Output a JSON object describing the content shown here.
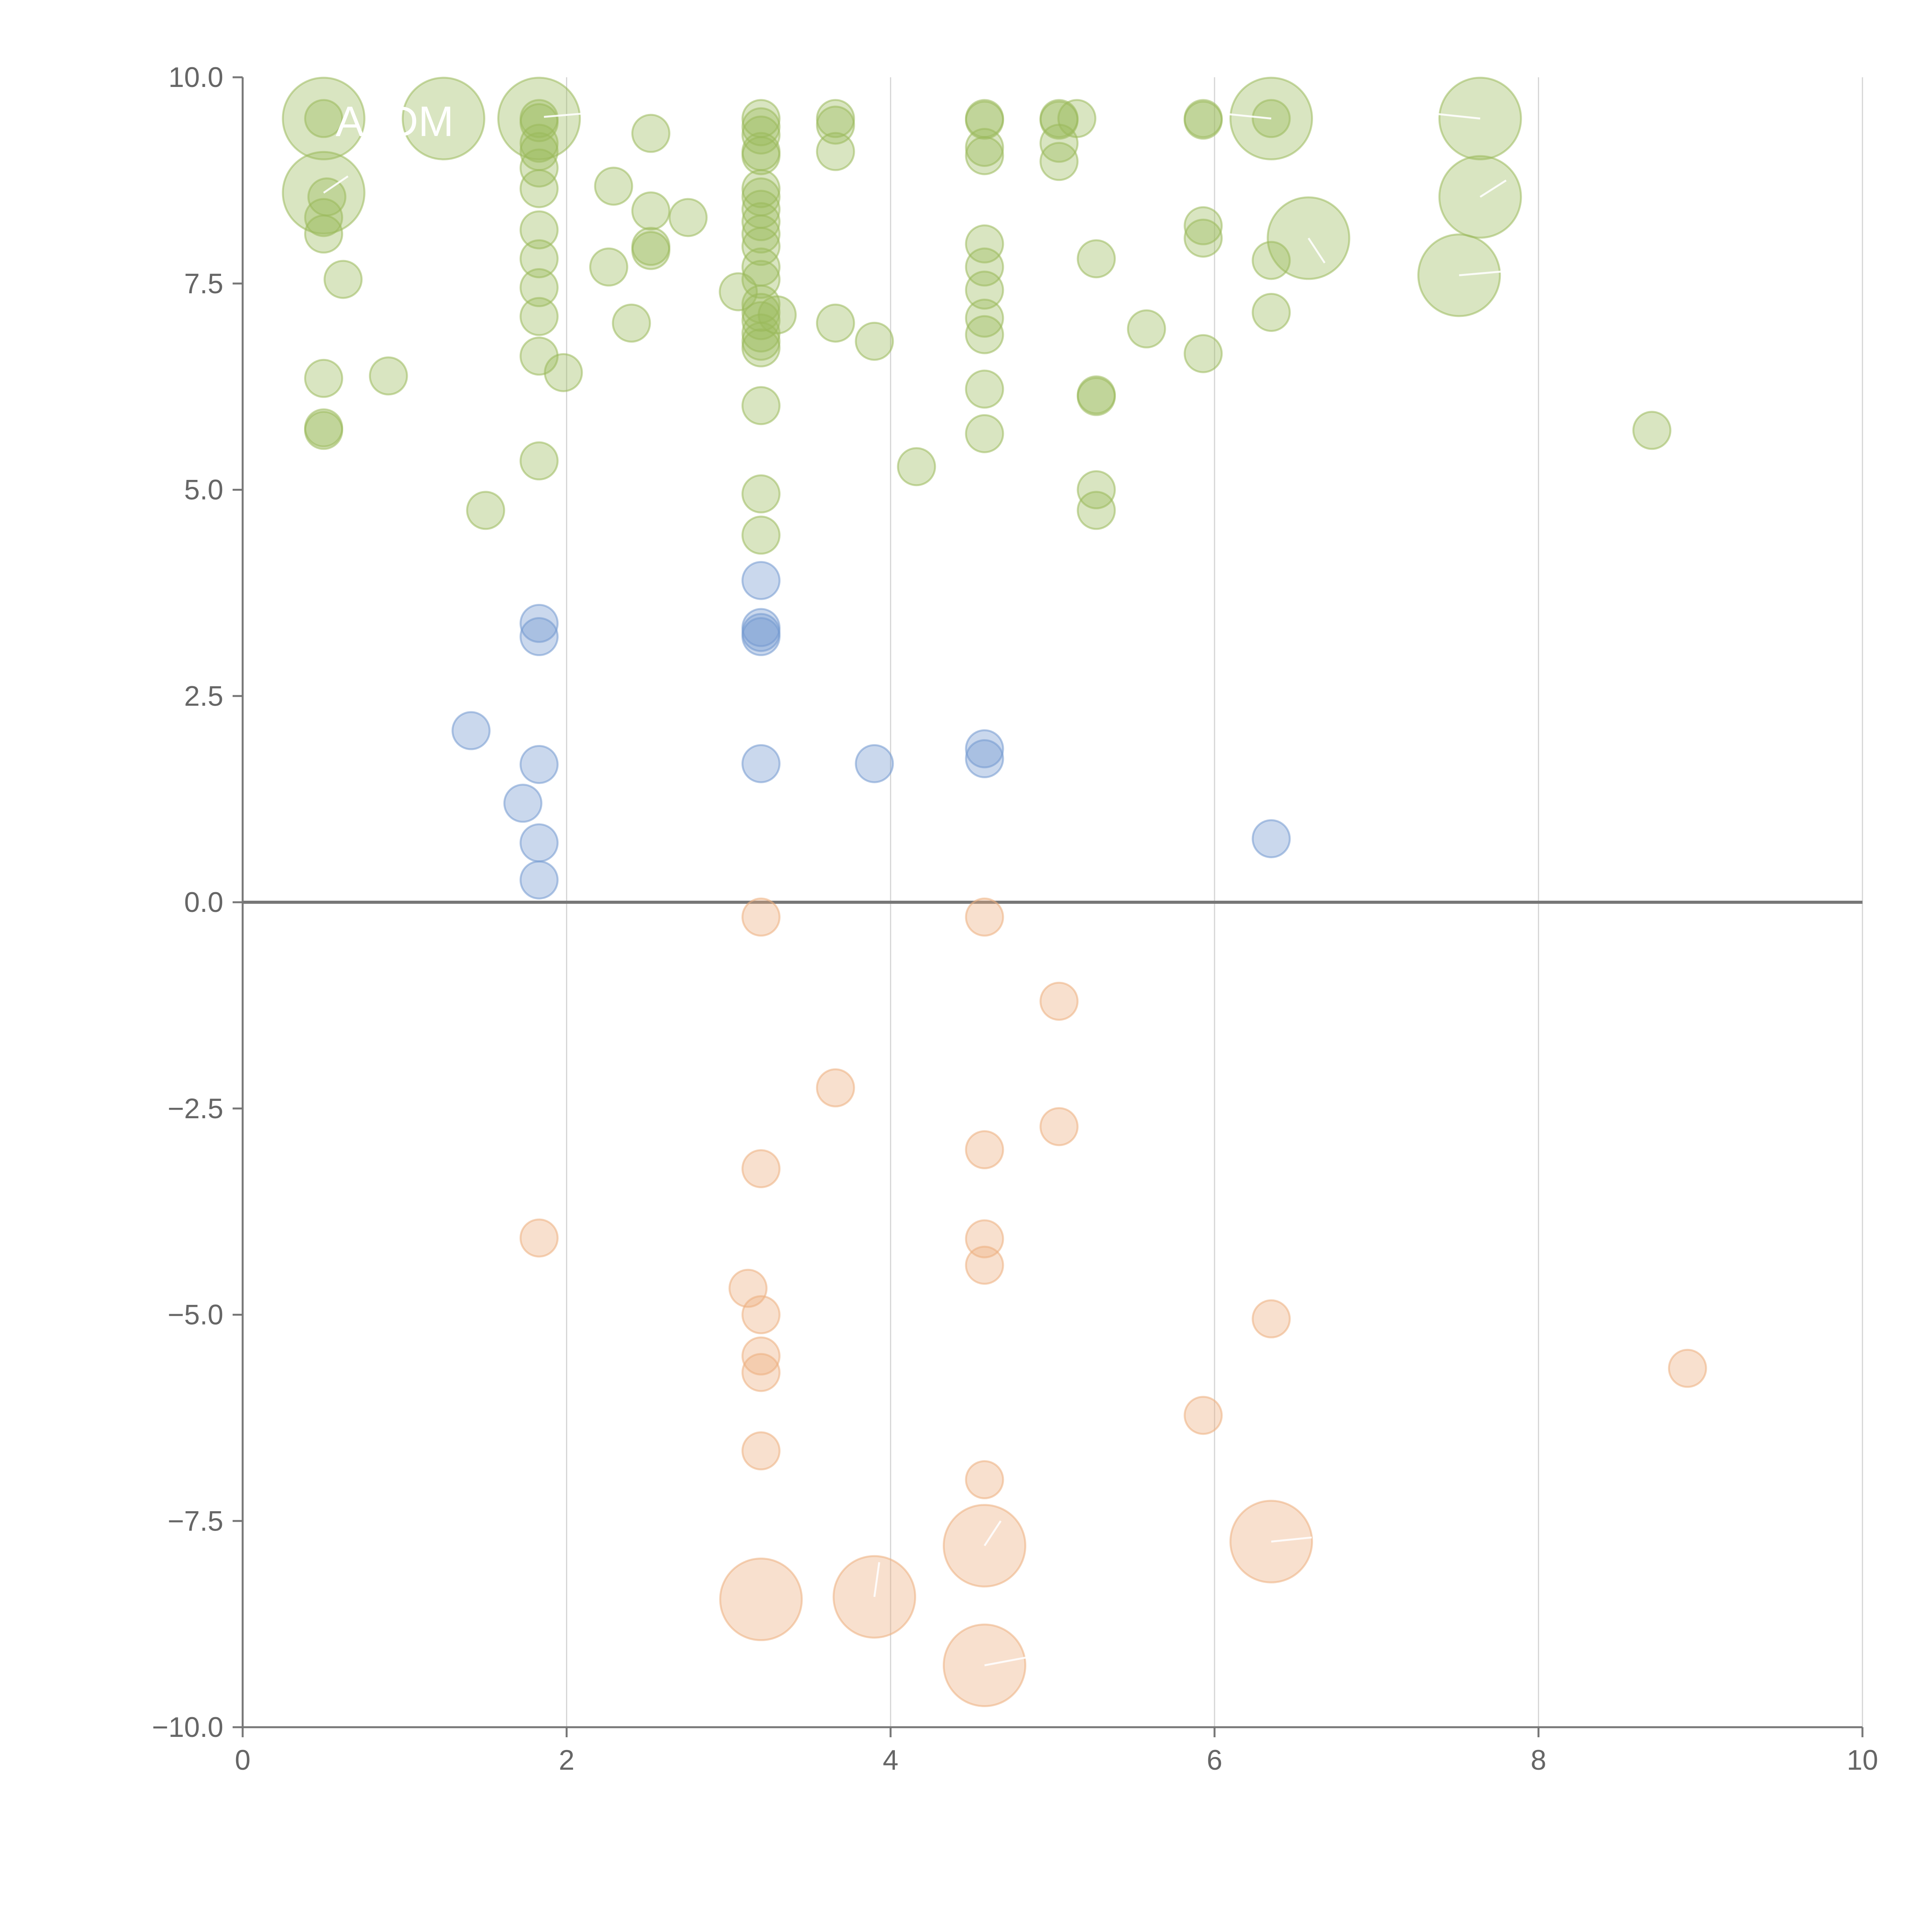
{
  "chart_data": {
    "type": "scatter",
    "title": "",
    "xlabel": "",
    "ylabel": "",
    "xlim": [
      0,
      10
    ],
    "ylim": [
      -10,
      10
    ],
    "x_ticks": [
      0,
      2,
      4,
      6,
      8,
      10
    ],
    "y_ticks": [
      -10,
      -7.5,
      -5,
      -2.5,
      0,
      2.5,
      5,
      7.5,
      10
    ],
    "x_tick_labels": [
      "0",
      "2",
      "4",
      "6",
      "8",
      "10"
    ],
    "y_tick_labels": [
      "−10.0",
      "−7.5",
      "−5.0",
      "−2.5",
      "0.0",
      "2.5",
      "5.0",
      "7.5",
      "10.0"
    ],
    "grid": "vertical gridlines at x ticks",
    "zero_line": true,
    "legend": "none",
    "size_unit_note": "bubble sizes are relative (1 = smallest)",
    "series": [
      {
        "color": "#9aba5b",
        "points": [
          [
            0.5,
            9.5,
            1
          ],
          [
            0.5,
            9.5,
            2.2
          ],
          [
            0.5,
            8.6,
            2.2
          ],
          [
            0.52,
            8.55,
            1
          ],
          [
            0.5,
            8.3,
            1
          ],
          [
            0.5,
            8.1,
            1
          ],
          [
            0.62,
            7.55,
            1
          ],
          [
            0.5,
            6.35,
            1
          ],
          [
            0.5,
            5.75,
            1
          ],
          [
            0.5,
            5.72,
            1
          ],
          [
            0.9,
            6.38,
            1
          ],
          [
            1.24,
            9.5,
            2.2
          ],
          [
            1.5,
            4.75,
            1
          ],
          [
            1.83,
            9.5,
            1
          ],
          [
            1.83,
            9.5,
            2.2
          ],
          [
            1.83,
            9.45,
            1
          ],
          [
            1.83,
            9.2,
            1
          ],
          [
            1.83,
            9.1,
            1
          ],
          [
            1.83,
            8.9,
            1
          ],
          [
            1.83,
            8.65,
            1
          ],
          [
            1.83,
            8.15,
            1
          ],
          [
            1.83,
            7.8,
            1
          ],
          [
            1.83,
            7.45,
            1
          ],
          [
            1.83,
            7.1,
            1
          ],
          [
            1.83,
            6.62,
            1
          ],
          [
            1.83,
            5.35,
            1
          ],
          [
            1.98,
            6.42,
            1
          ],
          [
            2.26,
            7.7,
            1
          ],
          [
            2.29,
            8.68,
            1
          ],
          [
            2.4,
            7.02,
            1
          ],
          [
            2.52,
            9.32,
            1
          ],
          [
            2.52,
            8.38,
            1
          ],
          [
            2.52,
            7.95,
            1
          ],
          [
            2.52,
            7.9,
            1
          ],
          [
            2.75,
            8.3,
            1
          ],
          [
            3.06,
            7.4,
            1
          ],
          [
            3.2,
            9.5,
            1
          ],
          [
            3.2,
            9.4,
            1
          ],
          [
            3.2,
            9.3,
            1
          ],
          [
            3.2,
            9.1,
            1
          ],
          [
            3.2,
            9.05,
            1
          ],
          [
            3.2,
            8.65,
            1
          ],
          [
            3.2,
            8.55,
            1
          ],
          [
            3.2,
            8.4,
            1
          ],
          [
            3.2,
            8.25,
            1
          ],
          [
            3.2,
            8.1,
            1
          ],
          [
            3.2,
            7.95,
            1
          ],
          [
            3.2,
            7.7,
            1
          ],
          [
            3.2,
            7.55,
            1
          ],
          [
            3.2,
            7.25,
            1
          ],
          [
            3.2,
            7.15,
            1
          ],
          [
            3.2,
            7.05,
            1
          ],
          [
            3.2,
            6.9,
            1
          ],
          [
            3.2,
            6.8,
            1
          ],
          [
            3.2,
            6.72,
            1
          ],
          [
            3.2,
            6.02,
            1
          ],
          [
            3.2,
            4.95,
            1
          ],
          [
            3.2,
            4.45,
            1
          ],
          [
            3.3,
            7.12,
            1
          ],
          [
            3.66,
            9.5,
            1
          ],
          [
            3.66,
            9.42,
            1
          ],
          [
            3.66,
            9.1,
            1
          ],
          [
            3.66,
            7.02,
            1
          ],
          [
            3.9,
            6.8,
            1
          ],
          [
            4.16,
            5.28,
            1
          ],
          [
            4.58,
            9.5,
            1
          ],
          [
            4.58,
            9.48,
            1
          ],
          [
            4.58,
            9.15,
            1
          ],
          [
            4.58,
            9.05,
            1
          ],
          [
            4.58,
            7.98,
            1
          ],
          [
            4.58,
            7.7,
            1
          ],
          [
            4.58,
            7.42,
            1
          ],
          [
            4.58,
            7.08,
            1
          ],
          [
            4.58,
            6.88,
            1
          ],
          [
            4.58,
            6.22,
            1
          ],
          [
            4.58,
            5.68,
            1
          ],
          [
            5.04,
            9.5,
            1
          ],
          [
            5.04,
            9.48,
            1
          ],
          [
            5.04,
            9.2,
            1
          ],
          [
            5.04,
            8.98,
            1
          ],
          [
            5.15,
            9.5,
            1
          ],
          [
            5.27,
            7.8,
            1
          ],
          [
            5.27,
            6.15,
            1
          ],
          [
            5.27,
            6.13,
            1
          ],
          [
            5.27,
            5.0,
            1
          ],
          [
            5.27,
            4.75,
            1
          ],
          [
            5.58,
            6.95,
            1
          ],
          [
            5.93,
            9.5,
            1
          ],
          [
            5.93,
            9.48,
            1
          ],
          [
            5.93,
            8.2,
            1
          ],
          [
            5.93,
            8.05,
            1
          ],
          [
            5.93,
            6.65,
            1
          ],
          [
            6.35,
            9.5,
            1
          ],
          [
            6.35,
            9.5,
            2.2
          ],
          [
            6.35,
            7.78,
            1
          ],
          [
            6.35,
            7.15,
            1
          ],
          [
            6.58,
            8.05,
            2.2
          ],
          [
            7.51,
            7.6,
            2.2
          ],
          [
            7.64,
            9.5,
            2.2
          ],
          [
            7.64,
            8.55,
            2.2
          ],
          [
            8.7,
            5.72,
            1
          ]
        ]
      },
      {
        "color": "#7399cf",
        "points": [
          [
            1.41,
            2.08,
            1
          ],
          [
            1.73,
            1.2,
            1
          ],
          [
            1.83,
            3.38,
            1
          ],
          [
            1.83,
            3.22,
            1
          ],
          [
            1.83,
            1.67,
            1
          ],
          [
            1.83,
            0.72,
            1
          ],
          [
            1.83,
            0.27,
            1
          ],
          [
            3.2,
            3.9,
            1
          ],
          [
            3.2,
            3.33,
            1
          ],
          [
            3.2,
            3.27,
            1
          ],
          [
            3.2,
            3.22,
            1
          ],
          [
            3.2,
            1.68,
            1
          ],
          [
            3.9,
            1.68,
            1
          ],
          [
            4.58,
            1.86,
            1
          ],
          [
            4.58,
            1.74,
            1
          ],
          [
            6.35,
            0.77,
            1
          ]
        ]
      },
      {
        "color": "#ecae7e",
        "points": [
          [
            1.83,
            -4.07,
            1
          ],
          [
            3.12,
            -4.68,
            1
          ],
          [
            3.2,
            -0.18,
            1
          ],
          [
            3.2,
            -3.23,
            1
          ],
          [
            3.2,
            -5.0,
            1
          ],
          [
            3.2,
            -5.5,
            1
          ],
          [
            3.2,
            -5.7,
            1
          ],
          [
            3.2,
            -6.65,
            1
          ],
          [
            3.2,
            -8.45,
            2.2
          ],
          [
            3.66,
            -2.25,
            1
          ],
          [
            3.9,
            -8.42,
            2.2
          ],
          [
            4.58,
            -0.18,
            1
          ],
          [
            4.58,
            -3.0,
            1
          ],
          [
            4.58,
            -4.08,
            1
          ],
          [
            4.58,
            -4.4,
            1
          ],
          [
            4.58,
            -7.0,
            1
          ],
          [
            4.58,
            -7.8,
            2.2
          ],
          [
            4.58,
            -9.25,
            2.2
          ],
          [
            5.04,
            -1.2,
            1
          ],
          [
            5.04,
            -2.72,
            1
          ],
          [
            5.93,
            -6.22,
            1
          ],
          [
            6.35,
            -5.05,
            1
          ],
          [
            6.35,
            -7.75,
            2.2
          ],
          [
            8.92,
            -5.65,
            1
          ]
        ]
      }
    ],
    "annotations": [
      {
        "text": "A. DM",
        "anchor": [
          0.55,
          9.5
        ]
      },
      {
        "text": "",
        "anchor": [
          1.86,
          9.52
        ]
      }
    ]
  }
}
